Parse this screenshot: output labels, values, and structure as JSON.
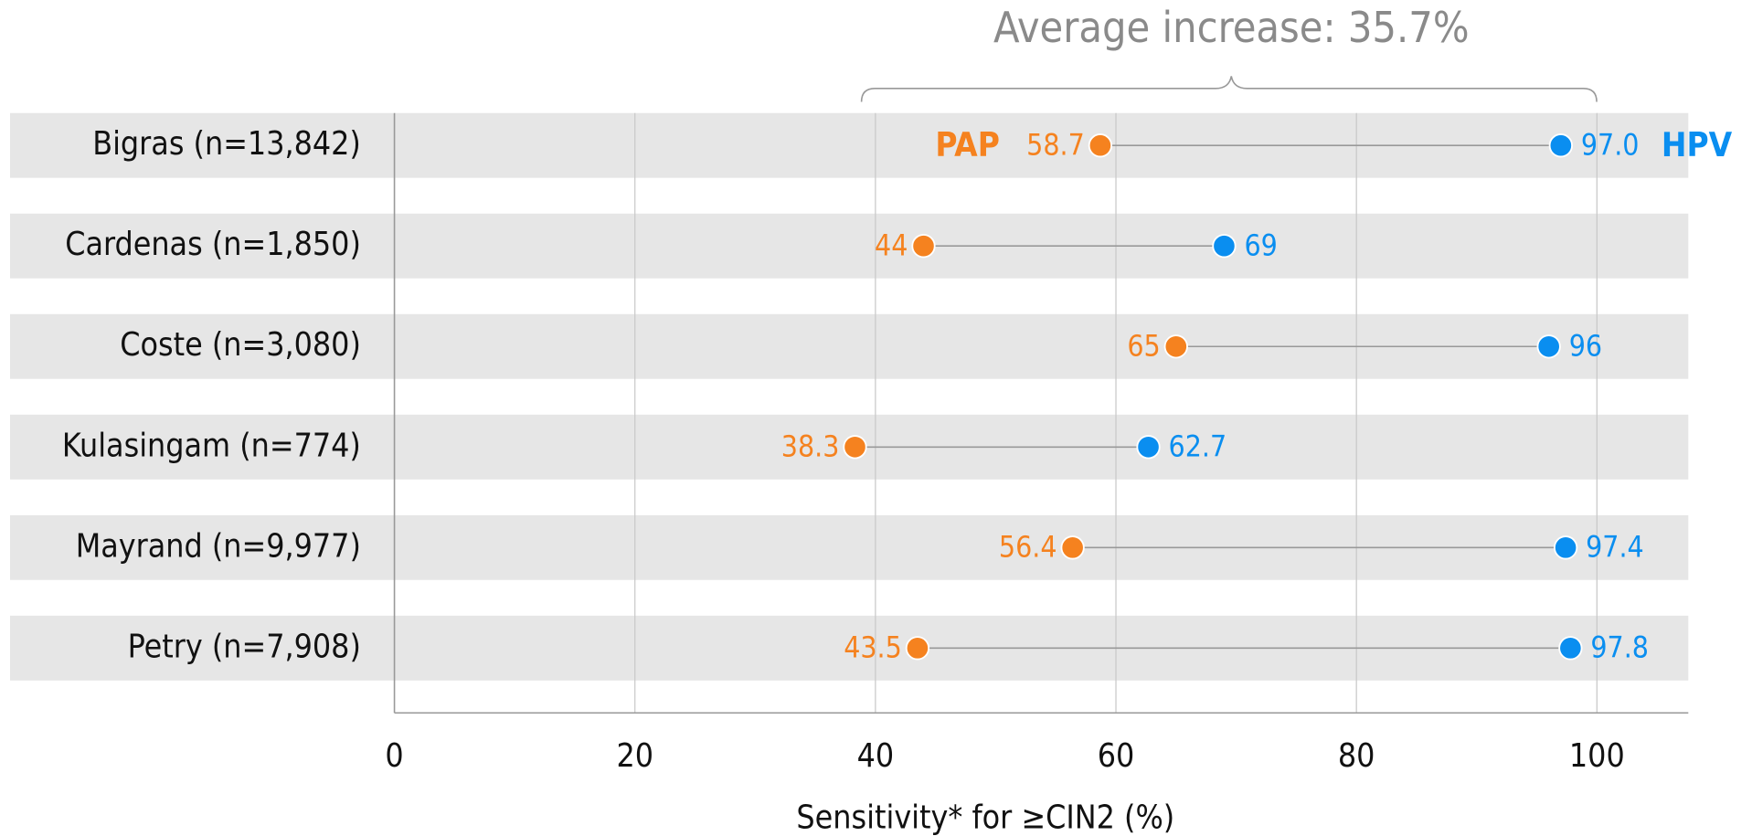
{
  "chart_data": {
    "type": "dumbbell",
    "annotation": "Average increase: 35.7%",
    "xlabel": "Sensitivity* for ≥CIN2 (%)",
    "categories": [
      "Bigras (n=13,842)",
      "Cardenas (n=1,850)",
      "Coste (n=3,080)",
      "Kulasingam (n=774)",
      "Mayrand (n=9,977)",
      "Petry (n=7,908)"
    ],
    "series": [
      {
        "name": "PAP",
        "color": "#f5821f",
        "values": [
          58.7,
          44,
          65,
          38.3,
          56.4,
          43.5
        ]
      },
      {
        "name": "HPV",
        "color": "#0a8ef0",
        "values": [
          97.0,
          69,
          96,
          62.7,
          97.4,
          97.8
        ],
        "value_labels": [
          "97.0",
          "69",
          "96",
          "62.7",
          "97.4",
          "97.8"
        ]
      }
    ],
    "xlim": [
      0,
      107.6
    ],
    "xticks": [
      0,
      20,
      40,
      60,
      80,
      100
    ],
    "grid": true
  }
}
